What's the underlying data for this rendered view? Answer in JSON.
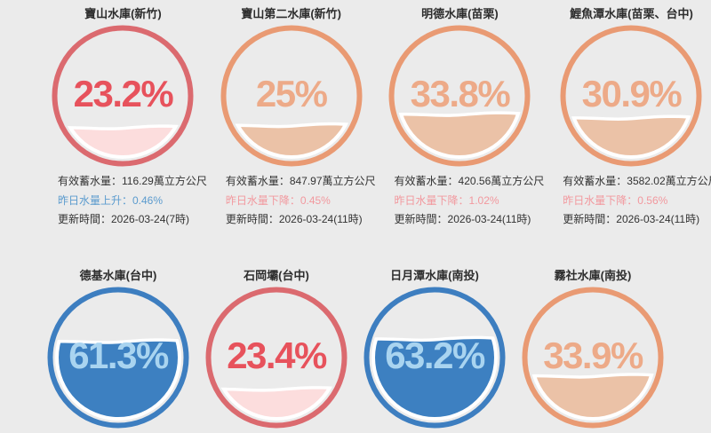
{
  "page": {
    "background": "#ebebeb",
    "title_color": "#2d2d2d"
  },
  "palette": {
    "red": {
      "ring": "#db6a6f",
      "percent_text": "#e7525c",
      "water_fill": "#fcdddd"
    },
    "orange": {
      "ring": "#e99a73",
      "percent_text": "#edaa88",
      "water_fill": "#ebc2a7"
    },
    "blue": {
      "ring": "#3d7ec0",
      "percent_text": "#a9d4f0",
      "water_fill": "#3d80c1"
    }
  },
  "info_colors": {
    "normal": "#333333",
    "up": "#5b9bce",
    "down": "#f2989e"
  },
  "chart_data": {
    "type": "gauge",
    "unit": "%",
    "title": "",
    "categories": [
      "寶山水庫(新竹)",
      "寶山第二水庫(新竹)",
      "明德水庫(苗栗)",
      "鯉魚潭水庫(苗栗、台中)",
      "德基水庫(台中)",
      "石岡壩(台中)",
      "日月潭水庫(南投)",
      "霧社水庫(南投)"
    ],
    "values": [
      23.2,
      25,
      33.8,
      30.9,
      61.3,
      23.4,
      63.2,
      33.9
    ],
    "value_range": [
      0,
      100
    ],
    "themes": [
      "red",
      "orange",
      "orange",
      "orange",
      "blue",
      "red",
      "blue",
      "orange"
    ],
    "storage_volume_wan_m3": [
      116.29,
      847.97,
      420.56,
      3582.02,
      null,
      null,
      null,
      null
    ],
    "daily_change_percent": [
      0.46,
      -0.45,
      -1.02,
      -0.56,
      null,
      null,
      null,
      null
    ],
    "updated": [
      "2026-03-24(7時)",
      "2026-03-24(11時)",
      "2026-03-24(11時)",
      "2026-03-24(11時)",
      null,
      null,
      null,
      null
    ]
  },
  "reservoirs": [
    {
      "name": "寶山水庫(新竹)",
      "percent": "23.2%",
      "value": 23.2,
      "theme": "red",
      "info": [
        {
          "text": "有效蓄水量：116.29萬立方公尺",
          "type": "normal"
        },
        {
          "text": "昨日水量上升：0.46%",
          "type": "up"
        },
        {
          "text": "更新時間：2026-03-24(7時)",
          "type": "normal"
        }
      ]
    },
    {
      "name": "寶山第二水庫(新竹)",
      "percent": "25%",
      "value": 25,
      "theme": "orange",
      "info": [
        {
          "text": "有效蓄水量：847.97萬立方公尺",
          "type": "normal"
        },
        {
          "text": "昨日水量下降：0.45%",
          "type": "down"
        },
        {
          "text": "更新時間：2026-03-24(11時)",
          "type": "normal"
        }
      ]
    },
    {
      "name": "明德水庫(苗栗)",
      "percent": "33.8%",
      "value": 33.8,
      "theme": "orange",
      "info": [
        {
          "text": "有效蓄水量：420.56萬立方公尺",
          "type": "normal"
        },
        {
          "text": "昨日水量下降：1.02%",
          "type": "down"
        },
        {
          "text": "更新時間：2026-03-24(11時)",
          "type": "normal"
        }
      ]
    },
    {
      "name": "鯉魚潭水庫(苗栗、台中)",
      "percent": "30.9%",
      "value": 30.9,
      "theme": "orange",
      "info": [
        {
          "text": "有效蓄水量：3582.02萬立方公尺",
          "type": "normal"
        },
        {
          "text": "昨日水量下降：0.56%",
          "type": "down"
        },
        {
          "text": "更新時間：2026-03-24(11時)",
          "type": "normal"
        }
      ]
    },
    {
      "name": "德基水庫(台中)",
      "percent": "61.3%",
      "value": 61.3,
      "theme": "blue",
      "info": []
    },
    {
      "name": "石岡壩(台中)",
      "percent": "23.4%",
      "value": 23.4,
      "theme": "red",
      "info": []
    },
    {
      "name": "日月潭水庫(南投)",
      "percent": "63.2%",
      "value": 63.2,
      "theme": "blue",
      "info": []
    },
    {
      "name": "霧社水庫(南投)",
      "percent": "33.9%",
      "value": 33.9,
      "theme": "orange",
      "info": []
    }
  ]
}
